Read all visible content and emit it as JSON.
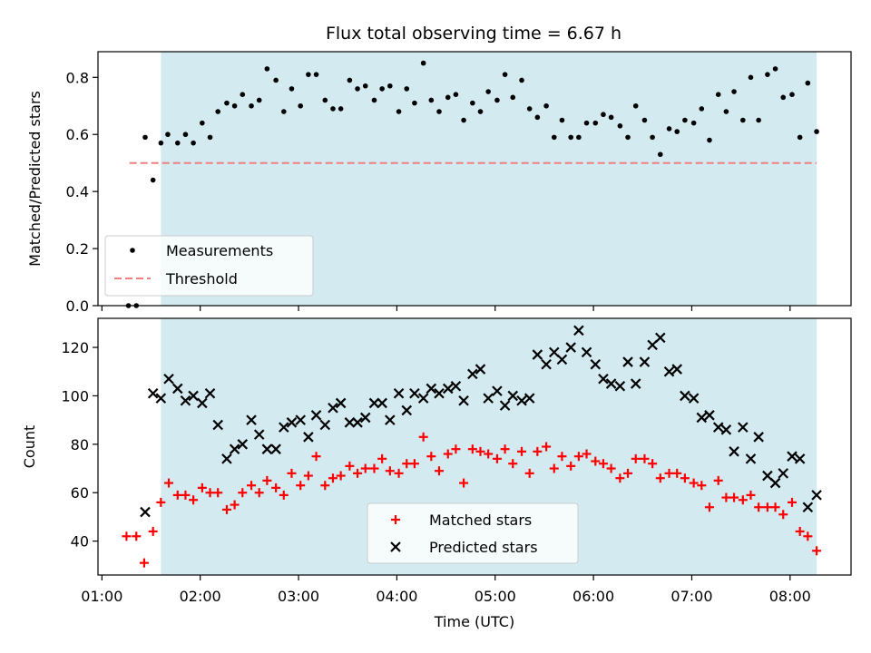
{
  "chart_data": [
    {
      "type": "scatter",
      "panel": "top",
      "title": "Flux total observing time = 6.67 h",
      "xlabel": "",
      "ylabel": "Matched/Predicted stars",
      "xlim": [
        0.96,
        8.62
      ],
      "ylim": [
        0.0,
        0.89
      ],
      "y_ticks": [
        0.0,
        0.2,
        0.4,
        0.6,
        0.8
      ],
      "y_tick_labels": [
        "0.0",
        "0.2",
        "0.4",
        "0.6",
        "0.8"
      ],
      "observing_window": [
        1.6,
        8.27
      ],
      "window_color": "#d2eaf0",
      "threshold": {
        "name": "Threshold",
        "value": 0.5,
        "x_range": [
          1.28,
          8.27
        ],
        "color": "#f08080"
      },
      "legend_position": "lower-left",
      "series": [
        {
          "name": "Measurements",
          "marker": "dot",
          "color": "#000000",
          "points": [
            [
              1.27,
              0.0
            ],
            [
              1.35,
              0.0
            ],
            [
              1.44,
              0.59
            ],
            [
              1.52,
              0.44
            ],
            [
              1.6,
              0.57
            ],
            [
              1.67,
              0.6
            ],
            [
              1.77,
              0.57
            ],
            [
              1.85,
              0.6
            ],
            [
              1.93,
              0.57
            ],
            [
              2.02,
              0.64
            ],
            [
              2.1,
              0.59
            ],
            [
              2.18,
              0.68
            ],
            [
              2.27,
              0.71
            ],
            [
              2.35,
              0.7
            ],
            [
              2.43,
              0.74
            ],
            [
              2.52,
              0.7
            ],
            [
              2.6,
              0.72
            ],
            [
              2.68,
              0.83
            ],
            [
              2.77,
              0.79
            ],
            [
              2.85,
              0.68
            ],
            [
              2.93,
              0.76
            ],
            [
              3.02,
              0.7
            ],
            [
              3.1,
              0.81
            ],
            [
              3.18,
              0.81
            ],
            [
              3.27,
              0.72
            ],
            [
              3.35,
              0.69
            ],
            [
              3.43,
              0.69
            ],
            [
              3.52,
              0.79
            ],
            [
              3.6,
              0.76
            ],
            [
              3.68,
              0.77
            ],
            [
              3.77,
              0.72
            ],
            [
              3.85,
              0.76
            ],
            [
              3.93,
              0.77
            ],
            [
              4.02,
              0.68
            ],
            [
              4.1,
              0.76
            ],
            [
              4.18,
              0.71
            ],
            [
              4.27,
              0.85
            ],
            [
              4.35,
              0.72
            ],
            [
              4.43,
              0.68
            ],
            [
              4.52,
              0.73
            ],
            [
              4.6,
              0.74
            ],
            [
              4.68,
              0.65
            ],
            [
              4.77,
              0.71
            ],
            [
              4.85,
              0.68
            ],
            [
              4.93,
              0.75
            ],
            [
              5.02,
              0.72
            ],
            [
              5.1,
              0.81
            ],
            [
              5.18,
              0.73
            ],
            [
              5.27,
              0.79
            ],
            [
              5.35,
              0.69
            ],
            [
              5.43,
              0.66
            ],
            [
              5.52,
              0.7
            ],
            [
              5.6,
              0.59
            ],
            [
              5.68,
              0.65
            ],
            [
              5.77,
              0.59
            ],
            [
              5.85,
              0.59
            ],
            [
              5.93,
              0.64
            ],
            [
              6.02,
              0.64
            ],
            [
              6.1,
              0.67
            ],
            [
              6.18,
              0.66
            ],
            [
              6.27,
              0.63
            ],
            [
              6.35,
              0.59
            ],
            [
              6.43,
              0.7
            ],
            [
              6.52,
              0.65
            ],
            [
              6.6,
              0.59
            ],
            [
              6.68,
              0.53
            ],
            [
              6.77,
              0.62
            ],
            [
              6.85,
              0.61
            ],
            [
              6.93,
              0.65
            ],
            [
              7.02,
              0.64
            ],
            [
              7.1,
              0.69
            ],
            [
              7.18,
              0.58
            ],
            [
              7.27,
              0.74
            ],
            [
              7.35,
              0.68
            ],
            [
              7.43,
              0.75
            ],
            [
              7.52,
              0.65
            ],
            [
              7.6,
              0.8
            ],
            [
              7.68,
              0.65
            ],
            [
              7.77,
              0.81
            ],
            [
              7.85,
              0.83
            ],
            [
              7.93,
              0.73
            ],
            [
              8.02,
              0.74
            ],
            [
              8.1,
              0.59
            ],
            [
              8.18,
              0.78
            ],
            [
              8.27,
              0.61
            ]
          ]
        }
      ]
    },
    {
      "type": "scatter",
      "panel": "bottom",
      "xlabel": "Time (UTC)",
      "ylabel": "Count",
      "xlim": [
        0.96,
        8.62
      ],
      "ylim": [
        26,
        132
      ],
      "x_ticks": [
        1,
        2,
        3,
        4,
        5,
        6,
        7,
        8
      ],
      "x_tick_labels": [
        "01:00",
        "02:00",
        "03:00",
        "04:00",
        "05:00",
        "06:00",
        "07:00",
        "08:00"
      ],
      "y_ticks": [
        40,
        60,
        80,
        100,
        120
      ],
      "y_tick_labels": [
        "40",
        "60",
        "80",
        "100",
        "120"
      ],
      "observing_window": [
        1.6,
        8.27
      ],
      "window_color": "#d2eaf0",
      "legend_position": "lower-center",
      "series": [
        {
          "name": "Matched stars",
          "marker": "plus",
          "color": "#ff0000",
          "points": [
            [
              1.25,
              42
            ],
            [
              1.35,
              42
            ],
            [
              1.43,
              31
            ],
            [
              1.52,
              44
            ],
            [
              1.6,
              56
            ],
            [
              1.68,
              64
            ],
            [
              1.77,
              59
            ],
            [
              1.85,
              59
            ],
            [
              1.93,
              57
            ],
            [
              2.02,
              62
            ],
            [
              2.1,
              60
            ],
            [
              2.18,
              60
            ],
            [
              2.27,
              53
            ],
            [
              2.35,
              55
            ],
            [
              2.43,
              60
            ],
            [
              2.52,
              63
            ],
            [
              2.6,
              60
            ],
            [
              2.68,
              65
            ],
            [
              2.77,
              62
            ],
            [
              2.85,
              59
            ],
            [
              2.93,
              68
            ],
            [
              3.02,
              63
            ],
            [
              3.1,
              67
            ],
            [
              3.18,
              75
            ],
            [
              3.27,
              63
            ],
            [
              3.35,
              66
            ],
            [
              3.43,
              67
            ],
            [
              3.52,
              71
            ],
            [
              3.6,
              68
            ],
            [
              3.68,
              70
            ],
            [
              3.77,
              70
            ],
            [
              3.85,
              74
            ],
            [
              3.93,
              69
            ],
            [
              4.02,
              68
            ],
            [
              4.1,
              72
            ],
            [
              4.18,
              72
            ],
            [
              4.27,
              83
            ],
            [
              4.35,
              75
            ],
            [
              4.43,
              69
            ],
            [
              4.52,
              76
            ],
            [
              4.6,
              78
            ],
            [
              4.68,
              64
            ],
            [
              4.77,
              78
            ],
            [
              4.85,
              77
            ],
            [
              4.93,
              76
            ],
            [
              5.02,
              74
            ],
            [
              5.1,
              78
            ],
            [
              5.18,
              72
            ],
            [
              5.27,
              77
            ],
            [
              5.35,
              68
            ],
            [
              5.43,
              77
            ],
            [
              5.52,
              79
            ],
            [
              5.6,
              70
            ],
            [
              5.68,
              75
            ],
            [
              5.77,
              71
            ],
            [
              5.85,
              75
            ],
            [
              5.93,
              76
            ],
            [
              6.02,
              73
            ],
            [
              6.1,
              72
            ],
            [
              6.18,
              70
            ],
            [
              6.27,
              66
            ],
            [
              6.35,
              68
            ],
            [
              6.43,
              74
            ],
            [
              6.52,
              74
            ],
            [
              6.6,
              72
            ],
            [
              6.68,
              66
            ],
            [
              6.77,
              68
            ],
            [
              6.85,
              68
            ],
            [
              6.93,
              66
            ],
            [
              7.02,
              64
            ],
            [
              7.1,
              63
            ],
            [
              7.18,
              54
            ],
            [
              7.27,
              65
            ],
            [
              7.35,
              58
            ],
            [
              7.43,
              58
            ],
            [
              7.52,
              57
            ],
            [
              7.6,
              59
            ],
            [
              7.68,
              54
            ],
            [
              7.77,
              54
            ],
            [
              7.85,
              54
            ],
            [
              7.93,
              51
            ],
            [
              8.02,
              56
            ],
            [
              8.1,
              44
            ],
            [
              8.18,
              42
            ],
            [
              8.27,
              36
            ]
          ]
        },
        {
          "name": "Predicted stars",
          "marker": "x",
          "color": "#000000",
          "points": [
            [
              1.44,
              52
            ],
            [
              1.52,
              101
            ],
            [
              1.6,
              99
            ],
            [
              1.68,
              107
            ],
            [
              1.77,
              103
            ],
            [
              1.85,
              98
            ],
            [
              1.93,
              100
            ],
            [
              2.02,
              97
            ],
            [
              2.1,
              101
            ],
            [
              2.18,
              88
            ],
            [
              2.27,
              74
            ],
            [
              2.35,
              78
            ],
            [
              2.43,
              80
            ],
            [
              2.52,
              90
            ],
            [
              2.6,
              84
            ],
            [
              2.68,
              78
            ],
            [
              2.77,
              78
            ],
            [
              2.85,
              87
            ],
            [
              2.93,
              89
            ],
            [
              3.02,
              90
            ],
            [
              3.1,
              83
            ],
            [
              3.18,
              92
            ],
            [
              3.27,
              88
            ],
            [
              3.35,
              95
            ],
            [
              3.43,
              97
            ],
            [
              3.52,
              89
            ],
            [
              3.6,
              89
            ],
            [
              3.68,
              91
            ],
            [
              3.77,
              97
            ],
            [
              3.85,
              97
            ],
            [
              3.93,
              90
            ],
            [
              4.02,
              101
            ],
            [
              4.1,
              94
            ],
            [
              4.18,
              101
            ],
            [
              4.27,
              99
            ],
            [
              4.35,
              103
            ],
            [
              4.43,
              101
            ],
            [
              4.52,
              103
            ],
            [
              4.6,
              104
            ],
            [
              4.68,
              98
            ],
            [
              4.77,
              109
            ],
            [
              4.85,
              111
            ],
            [
              4.93,
              99
            ],
            [
              5.02,
              102
            ],
            [
              5.1,
              96
            ],
            [
              5.18,
              100
            ],
            [
              5.27,
              98
            ],
            [
              5.35,
              99
            ],
            [
              5.43,
              117
            ],
            [
              5.52,
              113
            ],
            [
              5.6,
              118
            ],
            [
              5.68,
              115
            ],
            [
              5.77,
              120
            ],
            [
              5.85,
              127
            ],
            [
              5.93,
              118
            ],
            [
              6.02,
              113
            ],
            [
              6.1,
              107
            ],
            [
              6.18,
              105
            ],
            [
              6.27,
              104
            ],
            [
              6.35,
              114
            ],
            [
              6.43,
              105
            ],
            [
              6.52,
              114
            ],
            [
              6.6,
              121
            ],
            [
              6.68,
              124
            ],
            [
              6.77,
              110
            ],
            [
              6.85,
              111
            ],
            [
              6.93,
              100
            ],
            [
              7.02,
              99
            ],
            [
              7.1,
              91
            ],
            [
              7.18,
              92
            ],
            [
              7.27,
              87
            ],
            [
              7.35,
              86
            ],
            [
              7.43,
              77
            ],
            [
              7.52,
              87
            ],
            [
              7.6,
              74
            ],
            [
              7.68,
              83
            ],
            [
              7.77,
              67
            ],
            [
              7.85,
              64
            ],
            [
              7.93,
              68
            ],
            [
              8.02,
              75
            ],
            [
              8.1,
              74
            ],
            [
              8.18,
              54
            ],
            [
              8.27,
              59
            ]
          ]
        }
      ]
    }
  ]
}
